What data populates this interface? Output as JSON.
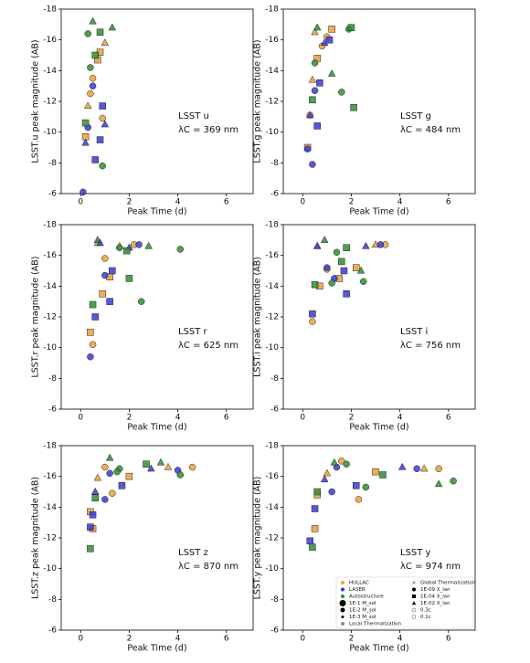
{
  "chart_data": [
    {
      "type": "scatter",
      "xlabel": "Peak Time (d)",
      "ylabel": "LSST.u peak magnitude (AB)",
      "annotation": "LSST u",
      "annotation2": "λC = 369 nm",
      "xlim": [
        -0.8,
        7.1
      ],
      "xticks": [
        0,
        2,
        4,
        6
      ],
      "ylim": [
        -6,
        -18
      ],
      "yticks": [
        -6,
        -8,
        -10,
        -12,
        -14,
        -16,
        -18
      ],
      "series": [
        {
          "name": "HULLAC",
          "color": "#e8a03a",
          "markers": [
            "^",
            "o",
            "s",
            "^",
            "o",
            "s",
            "o",
            "s"
          ],
          "x": [
            0.3,
            0.5,
            0.7,
            1.0,
            0.9,
            0.2,
            0.4,
            0.8
          ],
          "values": [
            -11.7,
            -13.5,
            -14.7,
            -15.8,
            -10.9,
            -9.7,
            -12.5,
            -15.2
          ]
        },
        {
          "name": "LASER",
          "color": "#3a3ad6",
          "markers": [
            "^",
            "o",
            "s",
            "^",
            "o",
            "s",
            "o",
            "s"
          ],
          "x": [
            0.2,
            0.5,
            0.9,
            1.0,
            0.1,
            0.6,
            0.3,
            0.8
          ],
          "values": [
            -9.3,
            -13,
            -11.7,
            -10.5,
            -6.1,
            -8.2,
            -10.3,
            -9.5
          ]
        },
        {
          "name": "Autostructure",
          "color": "#2f8f2f",
          "markers": [
            "^",
            "o",
            "s",
            "^",
            "o",
            "s",
            "o",
            "s"
          ],
          "x": [
            0.5,
            0.3,
            0.8,
            1.3,
            0.4,
            0.2,
            0.9,
            0.6
          ],
          "values": [
            -17.2,
            -16.4,
            -16.5,
            -16.8,
            -14.2,
            -10.6,
            -7.8,
            -15
          ]
        }
      ]
    },
    {
      "type": "scatter",
      "xlabel": "Peak Time (d)",
      "ylabel": "LSST.g peak magnitude (AB)",
      "annotation": "LSST g",
      "annotation2": "λC = 484 nm",
      "xlim": [
        -0.8,
        7.1
      ],
      "xticks": [
        0,
        2,
        4,
        6
      ],
      "ylim": [
        -6,
        -18
      ],
      "yticks": [
        -6,
        -8,
        -10,
        -12,
        -14,
        -16,
        -18
      ],
      "series": [
        {
          "name": "HULLAC",
          "color": "#e8a03a",
          "markers": [
            "^",
            "o",
            "s",
            "^",
            "o",
            "s",
            "o",
            "s"
          ],
          "x": [
            0.5,
            0.8,
            1.2,
            0.4,
            0.3,
            0.6,
            1.0,
            0.2
          ],
          "values": [
            -16.5,
            -15.6,
            -16.7,
            -13.4,
            -11.1,
            -14.8,
            -16.2,
            -9.0
          ]
        },
        {
          "name": "LASER",
          "color": "#3a3ad6",
          "markers": [
            "^",
            "o",
            "s",
            "^",
            "o",
            "s",
            "o",
            "s"
          ],
          "x": [
            0.3,
            0.5,
            0.7,
            0.9,
            0.2,
            0.6,
            0.4,
            1.1
          ],
          "values": [
            -11.1,
            -12.7,
            -13.2,
            -15.8,
            -8.9,
            -10.4,
            -7.9,
            -16
          ]
        },
        {
          "name": "Autostructure",
          "color": "#2f8f2f",
          "markers": [
            "^",
            "o",
            "s",
            "^",
            "o",
            "s",
            "o",
            "s"
          ],
          "x": [
            0.6,
            1.9,
            2.0,
            1.2,
            1.6,
            2.1,
            0.5,
            0.4
          ],
          "values": [
            -16.8,
            -16.7,
            -16.8,
            -13.8,
            -12.6,
            -11.6,
            -14.5,
            -12.1
          ]
        }
      ]
    },
    {
      "type": "scatter",
      "xlabel": "Peak Time (d)",
      "ylabel": "LSST.r peak magnitude (AB)",
      "annotation": "LSST r",
      "annotation2": "λC = 625 nm",
      "xlim": [
        -0.8,
        7.1
      ],
      "xticks": [
        0,
        2,
        4,
        6
      ],
      "ylim": [
        -6,
        -18
      ],
      "yticks": [
        -6,
        -8,
        -10,
        -12,
        -14,
        -16,
        -18
      ],
      "series": [
        {
          "name": "HULLAC",
          "color": "#e8a03a",
          "markers": [
            "^",
            "o",
            "s",
            "^",
            "o",
            "s",
            "o",
            "s"
          ],
          "x": [
            0.7,
            1.0,
            1.2,
            1.6,
            2.2,
            0.9,
            0.5,
            0.4
          ],
          "values": [
            -16.8,
            -15.8,
            -14.6,
            -16.6,
            -16.7,
            -13.5,
            -10.2,
            -11
          ]
        },
        {
          "name": "LASER",
          "color": "#3a3ad6",
          "markers": [
            "^",
            "o",
            "s",
            "^",
            "o",
            "s",
            "o",
            "s"
          ],
          "x": [
            0.8,
            1.0,
            1.2,
            2.0,
            2.4,
            0.6,
            0.4,
            1.3
          ],
          "values": [
            -16.8,
            -14.7,
            -13,
            -16.5,
            -16.7,
            -12,
            -9.4,
            -15
          ]
        },
        {
          "name": "Autostructure",
          "color": "#2f8f2f",
          "markers": [
            "^",
            "o",
            "s",
            "^",
            "o",
            "s",
            "o",
            "s"
          ],
          "x": [
            0.7,
            1.6,
            1.9,
            2.8,
            4.1,
            2.0,
            2.5,
            0.5
          ],
          "values": [
            -17,
            -16.5,
            -16.3,
            -16.6,
            -16.4,
            -14.5,
            -13,
            -12.8
          ]
        }
      ]
    },
    {
      "type": "scatter",
      "xlabel": "Peak Time (d)",
      "ylabel": "LSST.i peak magnitude (AB)",
      "annotation": "LSST i",
      "annotation2": "λC = 756 nm",
      "xlim": [
        -0.8,
        7.1
      ],
      "xticks": [
        0,
        2,
        4,
        6
      ],
      "ylim": [
        -6,
        -18
      ],
      "yticks": [
        -6,
        -8,
        -10,
        -12,
        -14,
        -16,
        -18
      ],
      "series": [
        {
          "name": "HULLAC",
          "color": "#e8a03a",
          "markers": [
            "^",
            "o",
            "s",
            "^",
            "o",
            "s",
            "o",
            "s"
          ],
          "x": [
            0.6,
            1.0,
            1.5,
            3.0,
            3.4,
            2.2,
            0.4,
            0.7
          ],
          "values": [
            -16.6,
            -15.1,
            -14.5,
            -16.7,
            -16.7,
            -15.2,
            -11.7,
            -14
          ]
        },
        {
          "name": "LASER",
          "color": "#3a3ad6",
          "markers": [
            "^",
            "o",
            "s",
            "^",
            "o",
            "s",
            "o",
            "s"
          ],
          "x": [
            0.6,
            1.3,
            1.8,
            2.6,
            3.2,
            0.4,
            1.0,
            1.7
          ],
          "values": [
            -16.6,
            -14.5,
            -13.5,
            -16.6,
            -16.7,
            -12.2,
            -15.2,
            -15
          ]
        },
        {
          "name": "Autostructure",
          "color": "#2f8f2f",
          "markers": [
            "^",
            "o",
            "s",
            "^",
            "o",
            "s",
            "o",
            "s"
          ],
          "x": [
            0.9,
            1.4,
            1.8,
            2.4,
            1.2,
            0.5,
            2.5,
            1.6
          ],
          "values": [
            -17,
            -16.2,
            -16.5,
            -15,
            -14.2,
            -14.1,
            -14.3,
            -15.6
          ]
        }
      ]
    },
    {
      "type": "scatter",
      "xlabel": "Peak Time (d)",
      "ylabel": "LSST.z peak magnitude (AB)",
      "annotation": "LSST z",
      "annotation2": "λC = 870 nm",
      "xlim": [
        -0.8,
        7.1
      ],
      "xticks": [
        0,
        2,
        4,
        6
      ],
      "ylim": [
        -6,
        -18
      ],
      "yticks": [
        -6,
        -8,
        -10,
        -12,
        -14,
        -16,
        -18
      ],
      "series": [
        {
          "name": "HULLAC",
          "color": "#e8a03a",
          "markers": [
            "^",
            "o",
            "s",
            "^",
            "o",
            "s",
            "o",
            "s"
          ],
          "x": [
            0.7,
            1.0,
            2.0,
            3.6,
            4.6,
            0.5,
            1.3,
            0.4
          ],
          "values": [
            -15.9,
            -16.6,
            -16,
            -16.6,
            -16.6,
            -12.6,
            -14.9,
            -13.7
          ]
        },
        {
          "name": "LASER",
          "color": "#3a3ad6",
          "markers": [
            "^",
            "o",
            "s",
            "^",
            "o",
            "s",
            "o",
            "s"
          ],
          "x": [
            0.6,
            1.2,
            1.7,
            2.9,
            4.0,
            0.5,
            1.0,
            0.4
          ],
          "values": [
            -15,
            -16.2,
            -15.4,
            -16.5,
            -16.4,
            -13.5,
            -14.5,
            -12.7
          ]
        },
        {
          "name": "Autostructure",
          "color": "#2f8f2f",
          "markers": [
            "^",
            "o",
            "s",
            "^",
            "o",
            "s",
            "o",
            "s"
          ],
          "x": [
            1.2,
            1.6,
            2.7,
            3.3,
            4.1,
            0.6,
            1.5,
            0.4
          ],
          "values": [
            -17.2,
            -16.5,
            -16.8,
            -16.9,
            -16.1,
            -14.6,
            -16.3,
            -11.3
          ]
        }
      ]
    },
    {
      "type": "scatter",
      "xlabel": "Peak Time (d)",
      "ylabel": "LSST.y peak magnitude (AB)",
      "annotation": "LSST y",
      "annotation2": "λC = 974 nm",
      "xlim": [
        -0.8,
        7.1
      ],
      "xticks": [
        0,
        2,
        4,
        6
      ],
      "ylim": [
        -6,
        -18
      ],
      "yticks": [
        -6,
        -8,
        -10,
        -12,
        -14,
        -16,
        -18
      ],
      "series": [
        {
          "name": "HULLAC",
          "color": "#e8a03a",
          "markers": [
            "^",
            "o",
            "s",
            "^",
            "o",
            "s",
            "o",
            "s"
          ],
          "x": [
            1.0,
            1.6,
            3.0,
            5.0,
            5.6,
            0.6,
            2.3,
            0.5
          ],
          "values": [
            -16.2,
            -17,
            -16.3,
            -16.5,
            -16.5,
            -14.8,
            -14.5,
            -12.6
          ]
        },
        {
          "name": "LASER",
          "color": "#3a3ad6",
          "markers": [
            "^",
            "o",
            "s",
            "^",
            "o",
            "s",
            "o",
            "s"
          ],
          "x": [
            0.9,
            1.4,
            2.2,
            4.1,
            4.7,
            0.5,
            1.2,
            0.3
          ],
          "values": [
            -15.8,
            -16.6,
            -15.4,
            -16.6,
            -16.5,
            -13.9,
            -15,
            -11.8
          ]
        },
        {
          "name": "Autostructure",
          "color": "#2f8f2f",
          "markers": [
            "^",
            "o",
            "s",
            "^",
            "o",
            "s",
            "o",
            "s"
          ],
          "x": [
            1.3,
            1.8,
            3.3,
            5.6,
            6.2,
            0.6,
            2.6,
            0.4
          ],
          "values": [
            -16.9,
            -16.8,
            -16.1,
            -15.5,
            -15.7,
            -15,
            -15.3,
            -11.4
          ]
        }
      ],
      "legend": [
        {
          "label": "HULLAC",
          "marker": "o",
          "color": "#f5a623",
          "size": 2
        },
        {
          "label": "LASER",
          "marker": "o",
          "color": "#3333cc",
          "size": 2
        },
        {
          "label": "Autostructure",
          "marker": "o",
          "color": "#2e8b2e",
          "size": 2
        },
        {
          "label": "1E-1 M_sol",
          "marker": "o",
          "color": "#000000",
          "size": 3.5
        },
        {
          "label": "1E-2 M_sol",
          "marker": "o",
          "color": "#000000",
          "size": 2.5
        },
        {
          "label": "1E-3 M_sol",
          "marker": "o",
          "color": "#000000",
          "size": 1.5
        },
        {
          "label": "Local Thermalization",
          "marker": "o",
          "color": "#888888",
          "size": 2
        },
        {
          "label": "Global Thermalization",
          "marker": "o",
          "color": "#999999",
          "size": 1.5
        },
        {
          "label": "1E-09 X_lan",
          "marker": "o",
          "color": "#000000",
          "size": 2
        },
        {
          "label": "1E-04 X_lan",
          "marker": "s",
          "color": "#000000",
          "size": 2
        },
        {
          "label": "1E-02 X_lan",
          "marker": "^",
          "color": "#000000",
          "size": 2
        },
        {
          "label": "0.3c",
          "marker": "open",
          "color": "#555555",
          "size": 2
        },
        {
          "label": "0.1c",
          "marker": "open",
          "color": "#555555",
          "size": 2
        }
      ]
    }
  ]
}
